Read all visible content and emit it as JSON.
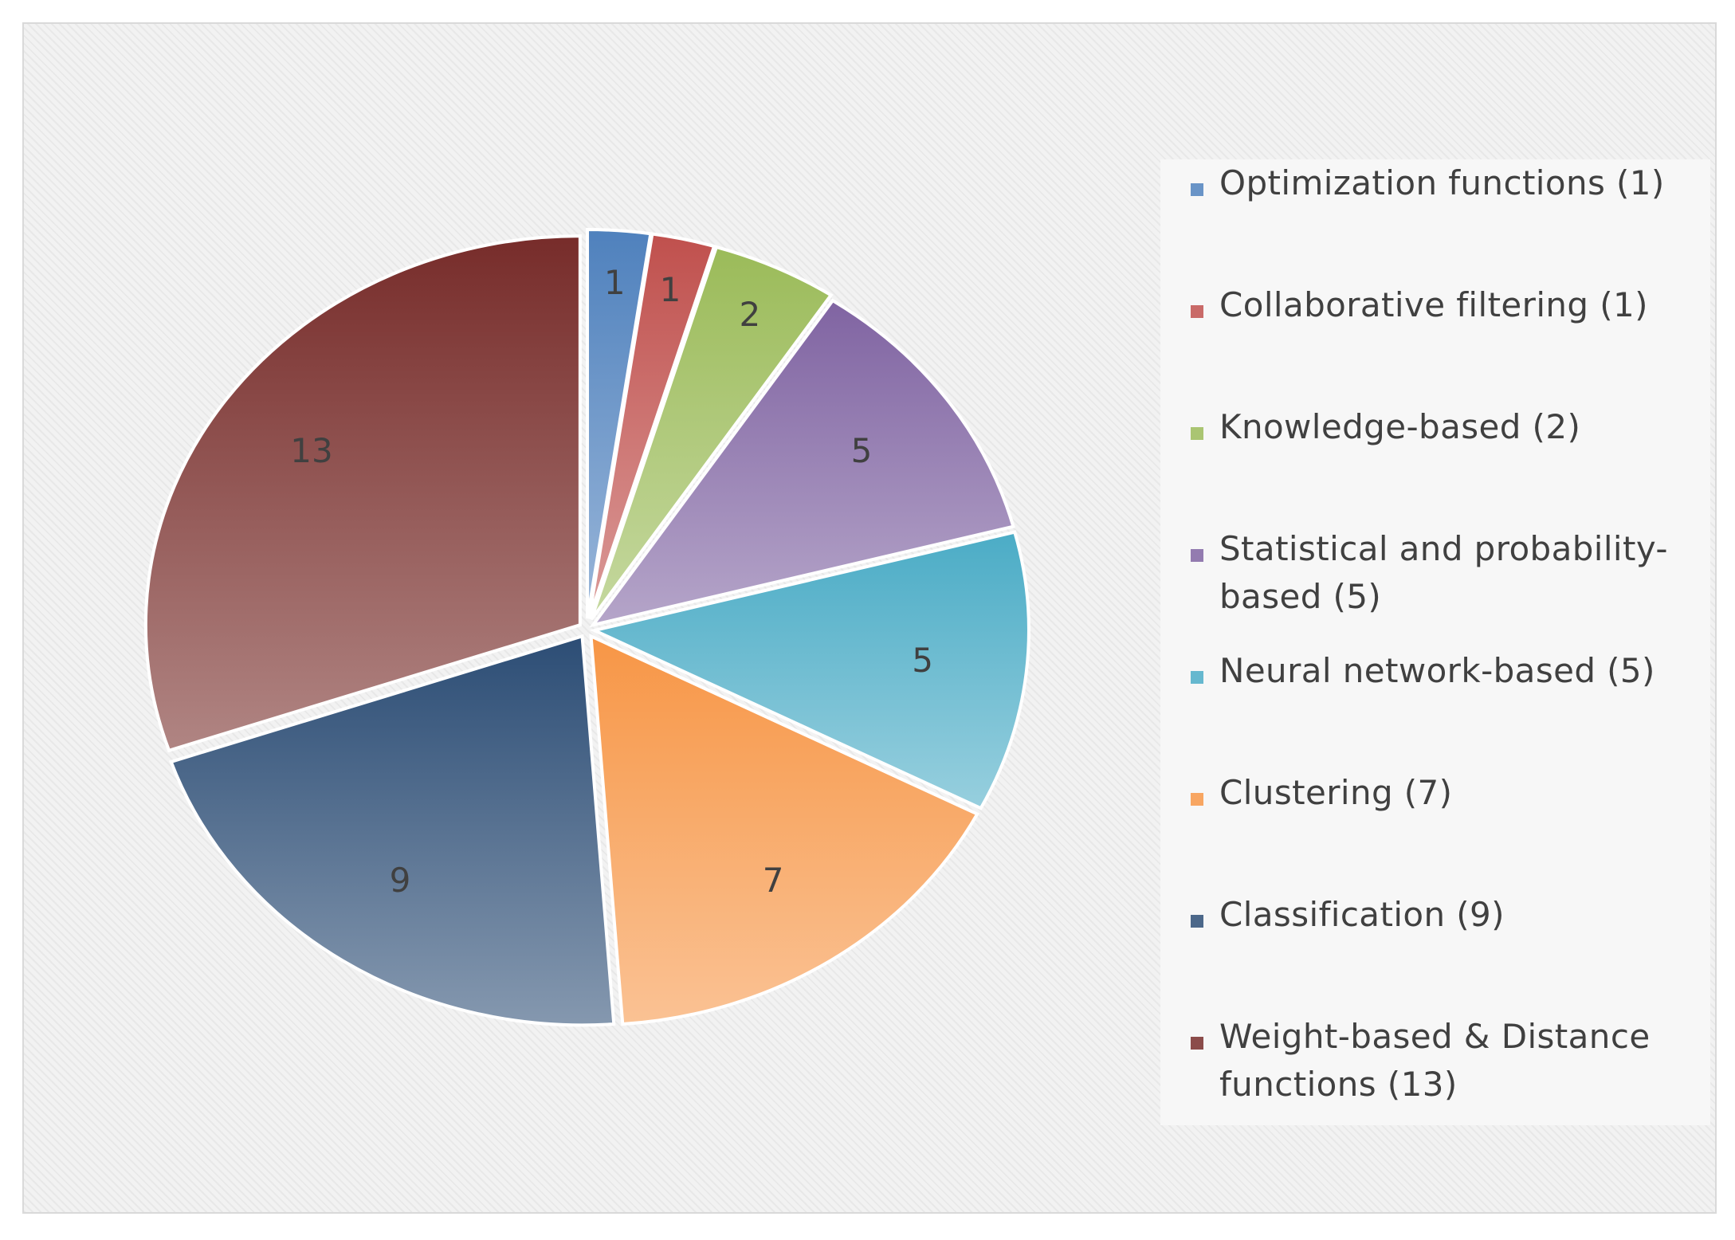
{
  "chart_data": {
    "type": "pie",
    "title": "",
    "categories": [
      "Optimization functions (1)",
      "Collaborative filtering (1)",
      "Knowledge-based (2)",
      "Statistical and probability-based (5)",
      "Neural network-based (5)",
      "Clustering (7)",
      "Classification (9)",
      "Weight-based & Distance functions (13)"
    ],
    "values": [
      1,
      1,
      2,
      5,
      5,
      7,
      9,
      13
    ],
    "value_labels": [
      "1",
      "1",
      "2",
      "5",
      "5",
      "7",
      "9",
      "13"
    ],
    "colors": [
      "#4f81bd",
      "#c0504d",
      "#9bbb59",
      "#8064a2",
      "#4bacc6",
      "#f79646",
      "#2c4d75",
      "#772c2a"
    ],
    "legend_placement": "right",
    "legend_lines": [
      [
        "Optimization functions (1)"
      ],
      [
        "Collaborative filtering (1)"
      ],
      [
        "Knowledge-based (2)"
      ],
      [
        "Statistical and probability-",
        "based (5)"
      ],
      [
        "Neural network-based (5)"
      ],
      [
        "Clustering (7)"
      ],
      [
        "Classification (9)"
      ],
      [
        "Weight-based & Distance",
        "functions (13)"
      ]
    ]
  }
}
